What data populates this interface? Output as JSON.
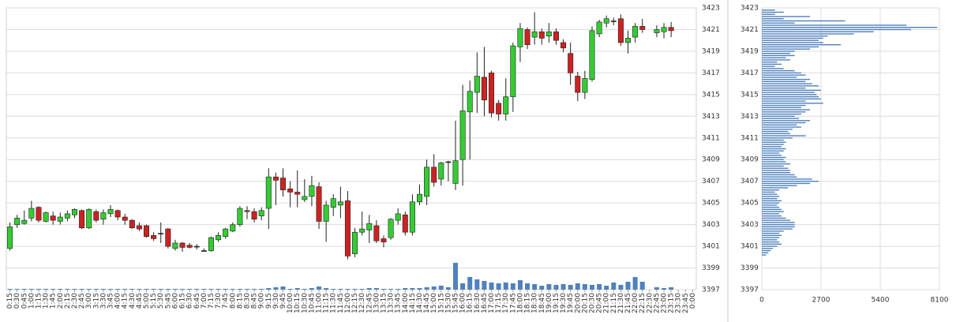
{
  "chart_data": [
    {
      "type": "candlestick",
      "categories": [
        "0:15",
        "0:30",
        "0:45",
        "1:00",
        "1:15",
        "1:30",
        "1:45",
        "2:00",
        "2:15",
        "2:30",
        "2:45",
        "3:00",
        "3:15",
        "3:30",
        "3:45",
        "4:00",
        "4:15",
        "4:30",
        "4:45",
        "5:00",
        "5:15",
        "5:30",
        "5:45",
        "6:00",
        "6:15",
        "6:30",
        "6:45",
        "7:00",
        "7:15",
        "7:30",
        "7:45",
        "8:00",
        "8:15",
        "8:30",
        "8:45",
        "9:00",
        "9:15",
        "9:30",
        "9:45",
        "10:00",
        "10:15",
        "10:30",
        "10:45",
        "11:00",
        "11:15",
        "11:30",
        "11:45",
        "12:00",
        "12:15",
        "12:30",
        "12:45",
        "13:00",
        "13:15",
        "13:30",
        "13:45",
        "14:00",
        "14:15",
        "14:30",
        "14:45",
        "15:00",
        "15:15",
        "15:30",
        "15:45",
        "16:00",
        "16:15",
        "16:30",
        "16:45",
        "17:00",
        "17:15",
        "17:30",
        "17:45",
        "18:00",
        "18:15",
        "18:30",
        "18:45",
        "19:00",
        "19:15",
        "19:30",
        "19:45",
        "20:00",
        "20:15",
        "20:30",
        "20:45",
        "21:00",
        "21:15",
        "21:30",
        "21:45",
        "22:00",
        "22:15",
        "22:30",
        "22:45",
        "23:00",
        "23:15",
        "23:30",
        "23:45",
        "0:00"
      ],
      "open": [
        3400.8,
        3403,
        3403.1,
        3403.6,
        3404.6,
        3403.3,
        3403.8,
        3403.3,
        3403.6,
        3403.9,
        3404.3,
        3402.7,
        3404.2,
        3403.5,
        3404,
        3404.3,
        3403.7,
        3403.4,
        3402.9,
        3402.9,
        3402,
        3402.2,
        3402.6,
        3400.8,
        3401.3,
        3401.1,
        3401,
        3400.6,
        3400.6,
        3401.6,
        3401.9,
        3402.4,
        3403,
        3404.3,
        3404.2,
        3403.8,
        3404.5,
        3407.4,
        3407.3,
        3406.3,
        3406,
        3405.3,
        3405.6,
        3406.5,
        3403.3,
        3404.6,
        3404.8,
        3405.2,
        3400.3,
        3402.3,
        3402.5,
        3402.9,
        3401.7,
        3401.8,
        3403.4,
        3403.9,
        3402.3,
        3405.1,
        3405.6,
        3408.3,
        3407.2,
        3408.8,
        3406.8,
        3409,
        3413.4,
        3415.2,
        3416.6,
        3417,
        3414.2,
        3413.2,
        3414.8,
        3419.4,
        3421,
        3420.3,
        3420.8,
        3420.4,
        3420.8,
        3419.8,
        3418.8,
        3416.7,
        3415.2,
        3416.4,
        3420.6,
        3421.6,
        3421.8,
        3422,
        3419.8,
        3420.3,
        3421.3,
        null,
        3420.7,
        3420.8,
        3421.2,
        null,
        null,
        null
      ],
      "high": [
        3403.2,
        3403.9,
        3404.3,
        3405.2,
        3404.7,
        3404.2,
        3404.2,
        3404.1,
        3404.3,
        3404.5,
        3404.4,
        3404.5,
        3404.4,
        3404.4,
        3404.8,
        3404.4,
        3404,
        3403.5,
        3403.2,
        3403,
        3402.3,
        3403.2,
        3402.7,
        3401.6,
        3401.4,
        3401.3,
        3401.2,
        3400.8,
        3401.9,
        3402.3,
        3402.7,
        3403.2,
        3404.7,
        3404.7,
        3404.5,
        3404.6,
        3408.2,
        3407.8,
        3408.2,
        3407,
        3408,
        3407.2,
        3407.5,
        3406.9,
        3405.2,
        3405.8,
        3406.5,
        3406.1,
        3402.7,
        3404.2,
        3403.9,
        3403.4,
        3402,
        3403.6,
        3404.5,
        3404.2,
        3405.8,
        3406.7,
        3409,
        3409.5,
        3408.8,
        3408.9,
        3412.6,
        3415.9,
        3416.3,
        3418.9,
        3419.4,
        3417.2,
        3414.5,
        3416.5,
        3419.8,
        3421.6,
        3421.2,
        3422.6,
        3421.1,
        3421.6,
        3421.1,
        3420.1,
        3419.8,
        3417.1,
        3417.2,
        3421.3,
        3421.9,
        3422.3,
        3422.1,
        3422.4,
        3420.9,
        3421.6,
        3422,
        null,
        3421.4,
        3421.6,
        3421.7,
        null,
        null,
        null
      ],
      "low": [
        3400.6,
        3402.7,
        3403,
        3403.3,
        3403.2,
        3403.2,
        3403,
        3403,
        3403.3,
        3403.6,
        3402.6,
        3402.6,
        3403.2,
        3403,
        3403.7,
        3403.4,
        3403,
        3402.6,
        3402.4,
        3401.8,
        3401.5,
        3401.3,
        3400.8,
        3400.6,
        3400.5,
        3400.8,
        3400.7,
        3400.5,
        3400.5,
        3401.4,
        3401.7,
        3402.3,
        3402.8,
        3403.5,
        3403.2,
        3403.4,
        3402.6,
        3404.8,
        3405.6,
        3404.6,
        3404.6,
        3405.1,
        3404.7,
        3402.6,
        3401.4,
        3403.8,
        3403.6,
        3399.8,
        3400,
        3402,
        3401.3,
        3401.3,
        3400.9,
        3401.6,
        3403,
        3402,
        3402,
        3404.8,
        3404.8,
        3406.5,
        3406.6,
        3407,
        3406.2,
        3406.6,
        3409,
        3413.3,
        3413,
        3412.9,
        3412.6,
        3412.6,
        3413.4,
        3418,
        3419.2,
        3419.6,
        3419.6,
        3419.8,
        3419.6,
        3418.9,
        3415.9,
        3414.4,
        3414.6,
        3416.2,
        3420.3,
        3421.2,
        3421.4,
        3419.5,
        3418.8,
        3419.8,
        3420.7,
        null,
        3420.3,
        3420.2,
        3420.3,
        null,
        null,
        null
      ],
      "close": [
        3402.8,
        3403.6,
        3403.4,
        3404.5,
        3403.4,
        3404.1,
        3403.4,
        3403.7,
        3404,
        3404.4,
        3402.7,
        3404.4,
        3403.4,
        3404.1,
        3404.4,
        3403.7,
        3403.4,
        3402.7,
        3402.6,
        3401.9,
        3401.7,
        3402.2,
        3401,
        3401.3,
        3400.9,
        3400.9,
        3401,
        3400.6,
        3401.8,
        3402,
        3402.6,
        3403,
        3404.5,
        3404.2,
        3403.5,
        3404.3,
        3407.4,
        3407.1,
        3406.2,
        3406,
        3405.8,
        3405.6,
        3406.6,
        3403.3,
        3404.8,
        3405.4,
        3405.1,
        3400.1,
        3402.3,
        3402.6,
        3403.1,
        3401.5,
        3401.4,
        3403.5,
        3404,
        3402.3,
        3405.1,
        3405.8,
        3408.3,
        3406.9,
        3408.7,
        3408.8,
        3408.9,
        3413.5,
        3415.3,
        3416.7,
        3414.5,
        3413.3,
        3413.2,
        3414.8,
        3419.5,
        3421.1,
        3419.6,
        3420.8,
        3420.2,
        3420.8,
        3420,
        3419.3,
        3417,
        3415.2,
        3416.5,
        3420.9,
        3421.7,
        3422,
        3421.8,
        3419.8,
        3420.2,
        3421.3,
        3421,
        null,
        3421,
        3421.2,
        3420.9,
        null,
        null,
        null
      ],
      "volume": [
        1,
        1,
        1,
        1,
        1,
        1,
        1,
        1,
        1,
        1,
        1,
        1,
        1,
        1,
        1,
        1,
        1,
        1,
        1,
        1,
        1,
        1,
        1,
        1,
        1,
        1,
        1,
        1,
        1,
        1,
        1,
        1,
        1,
        1,
        1,
        1,
        2,
        3,
        4,
        1,
        2,
        1,
        2,
        4,
        2,
        1,
        1,
        1,
        1,
        1,
        2,
        2,
        1,
        1,
        1,
        2,
        2,
        2,
        3,
        4,
        5,
        3,
        34,
        8,
        16,
        13,
        11,
        9,
        8,
        9,
        8,
        12,
        8,
        7,
        5,
        7,
        6,
        7,
        6,
        8,
        7,
        6,
        7,
        5,
        9,
        6,
        10,
        16,
        10,
        null,
        3,
        2,
        3,
        null,
        null,
        null
      ],
      "up_color": "#33cc33",
      "down_color": "#cc2222",
      "volume_color": "#4f81bd",
      "ylim": [
        3397,
        3423
      ],
      "yticks": [
        3397,
        3399,
        3401,
        3403,
        3405,
        3407,
        3409,
        3411,
        3413,
        3415,
        3417,
        3419,
        3421,
        3423
      ],
      "grid": true
    },
    {
      "type": "barh",
      "y": [
        3422.8,
        3422.6,
        3422.4,
        3422.2,
        3422,
        3421.8,
        3421.6,
        3421.4,
        3421.2,
        3421,
        3420.8,
        3420.6,
        3420.4,
        3420.2,
        3420,
        3419.8,
        3419.6,
        3419.4,
        3419.2,
        3419,
        3418.8,
        3418.6,
        3418.4,
        3418.2,
        3418,
        3417.8,
        3417.6,
        3417.4,
        3417.2,
        3417,
        3416.8,
        3416.6,
        3416.4,
        3416.2,
        3416,
        3415.8,
        3415.6,
        3415.4,
        3415.2,
        3415,
        3414.8,
        3414.6,
        3414.4,
        3414.2,
        3414,
        3413.8,
        3413.6,
        3413.4,
        3413.2,
        3413,
        3412.8,
        3412.6,
        3412.4,
        3412.2,
        3412,
        3411.8,
        3411.6,
        3411.4,
        3411.2,
        3411,
        3410.8,
        3410.6,
        3410.4,
        3410.2,
        3410,
        3409.8,
        3409.6,
        3409.4,
        3409.2,
        3409,
        3408.8,
        3408.6,
        3408.4,
        3408.2,
        3408,
        3407.8,
        3407.6,
        3407.4,
        3407.2,
        3407,
        3406.8,
        3406.6,
        3406.4,
        3406.2,
        3406,
        3405.8,
        3405.6,
        3405.4,
        3405.2,
        3405,
        3404.8,
        3404.6,
        3404.4,
        3404.2,
        3404,
        3403.8,
        3403.6,
        3403.4,
        3403.2,
        3403,
        3402.8,
        3402.6,
        3402.4,
        3402.2,
        3402,
        3401.8,
        3401.6,
        3401.4,
        3401.2,
        3401,
        3400.8,
        3400.6,
        3400.4,
        3400.2
      ],
      "values": [
        600,
        1000,
        600,
        2200,
        1000,
        3800,
        1500,
        6600,
        8000,
        6800,
        5100,
        4200,
        3000,
        2800,
        2600,
        2800,
        3600,
        2600,
        2200,
        1500,
        1300,
        1500,
        1100,
        1300,
        700,
        900,
        600,
        1000,
        1500,
        1800,
        2000,
        1600,
        2200,
        2000,
        2300,
        2600,
        2000,
        2700,
        2400,
        2500,
        2600,
        2700,
        2000,
        2800,
        2000,
        1800,
        2200,
        2000,
        1800,
        1500,
        1700,
        2200,
        2000,
        1600,
        1800,
        1400,
        1200,
        1300,
        2000,
        1400,
        1000,
        1100,
        1000,
        900,
        1100,
        1000,
        800,
        900,
        1100,
        1000,
        1100,
        1300,
        1000,
        1200,
        1300,
        1300,
        1500,
        1600,
        2300,
        2600,
        2200,
        1600,
        1200,
        800,
        600,
        700,
        800,
        700,
        900,
        800,
        700,
        800,
        900,
        1000,
        800,
        900,
        1100,
        1300,
        1500,
        1500,
        1500,
        1400,
        1000,
        800,
        900,
        800,
        700,
        800,
        900,
        700,
        500,
        400,
        300,
        200
      ],
      "color": "#4f81bd",
      "xlim": [
        0,
        8100
      ],
      "xticks": [
        0,
        2700,
        5400,
        8100
      ],
      "ylim": [
        3397,
        3423
      ],
      "yticks": [
        3397,
        3399,
        3401,
        3403,
        3405,
        3407,
        3409,
        3411,
        3413,
        3415,
        3417,
        3419,
        3421,
        3423
      ],
      "grid": true
    }
  ]
}
